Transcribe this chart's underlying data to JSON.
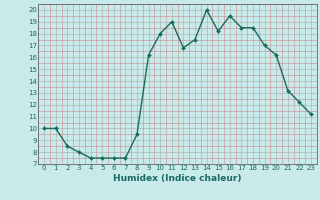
{
  "x": [
    0,
    1,
    2,
    3,
    4,
    5,
    6,
    7,
    8,
    9,
    10,
    11,
    12,
    13,
    14,
    15,
    16,
    17,
    18,
    19,
    20,
    21,
    22,
    23
  ],
  "y": [
    10,
    10,
    8.5,
    8.0,
    7.5,
    7.5,
    7.5,
    7.5,
    9.5,
    16.2,
    18.0,
    19.0,
    16.8,
    17.5,
    20.0,
    18.2,
    19.5,
    18.5,
    18.5,
    17.0,
    16.2,
    13.2,
    12.2,
    11.2
  ],
  "xlabel": "Humidex (Indice chaleur)",
  "xlim": [
    -0.5,
    23.5
  ],
  "ylim": [
    7,
    20.5
  ],
  "yticks": [
    7,
    8,
    9,
    10,
    11,
    12,
    13,
    14,
    15,
    16,
    17,
    18,
    19,
    20
  ],
  "xticks": [
    0,
    1,
    2,
    3,
    4,
    5,
    6,
    7,
    8,
    9,
    10,
    11,
    12,
    13,
    14,
    15,
    16,
    17,
    18,
    19,
    20,
    21,
    22,
    23
  ],
  "line_color": "#1a6b5e",
  "bg_color": "#c8eaea",
  "major_grid_color": "#aaaaaa",
  "minor_grid_color": "#cc8888",
  "tick_label_fontsize": 5,
  "xlabel_fontsize": 6.5
}
